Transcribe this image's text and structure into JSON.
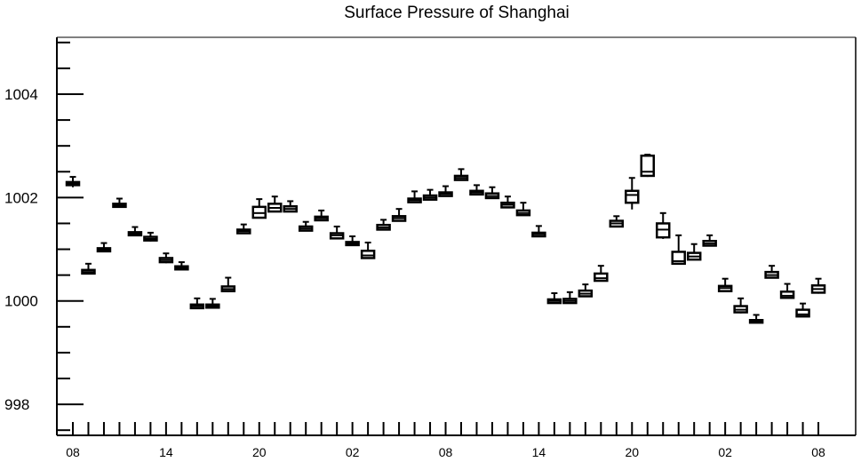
{
  "chart_data": {
    "type": "box",
    "title": "Surface Pressure of Shanghai",
    "xlabel": "",
    "ylabel": "",
    "ylim": [
      997.4,
      1005.1
    ],
    "yticks": [
      998,
      1000,
      1002,
      1004
    ],
    "ytick_labels": [
      "998",
      "1000",
      "1002",
      "1004"
    ],
    "xtick_labels": [
      "08",
      "14",
      "20",
      "02",
      "08",
      "14",
      "20",
      "02",
      "08"
    ],
    "xtick_label_at": [
      0,
      6,
      12,
      18,
      24,
      30,
      36,
      42,
      48
    ],
    "n_slots": 49,
    "grid": false,
    "boxes": [
      {
        "x": 0,
        "min": 1002.2,
        "q1": 1002.24,
        "median": 1002.27,
        "q3": 1002.3,
        "max": 1002.4
      },
      {
        "x": 1,
        "min": 1000.52,
        "q1": 1000.53,
        "median": 1000.56,
        "q3": 1000.6,
        "max": 1000.72
      },
      {
        "x": 2,
        "min": 1000.95,
        "q1": 1000.96,
        "median": 1000.99,
        "q3": 1001.02,
        "max": 1001.12
      },
      {
        "x": 3,
        "min": 1001.8,
        "q1": 1001.82,
        "median": 1001.85,
        "q3": 1001.88,
        "max": 1001.98
      },
      {
        "x": 4,
        "min": 1001.25,
        "q1": 1001.27,
        "median": 1001.3,
        "q3": 1001.33,
        "max": 1001.43
      },
      {
        "x": 5,
        "min": 1001.15,
        "q1": 1001.17,
        "median": 1001.2,
        "q3": 1001.24,
        "max": 1001.32
      },
      {
        "x": 6,
        "min": 1000.73,
        "q1": 1000.75,
        "median": 1000.79,
        "q3": 1000.83,
        "max": 1000.92
      },
      {
        "x": 7,
        "min": 1000.6,
        "q1": 1000.61,
        "median": 1000.64,
        "q3": 1000.67,
        "max": 1000.75
      },
      {
        "x": 8,
        "min": 999.85,
        "q1": 999.86,
        "median": 999.9,
        "q3": 999.93,
        "max": 1000.05
      },
      {
        "x": 9,
        "min": 999.86,
        "q1": 999.87,
        "median": 999.9,
        "q3": 999.93,
        "max": 1000.04
      },
      {
        "x": 10,
        "min": 1000.17,
        "q1": 1000.19,
        "median": 1000.23,
        "q3": 1000.28,
        "max": 1000.45
      },
      {
        "x": 11,
        "min": 1001.3,
        "q1": 1001.31,
        "median": 1001.35,
        "q3": 1001.38,
        "max": 1001.48
      },
      {
        "x": 12,
        "min": 1001.6,
        "q1": 1001.61,
        "median": 1001.7,
        "q3": 1001.82,
        "max": 1001.97
      },
      {
        "x": 13,
        "min": 1001.72,
        "q1": 1001.73,
        "median": 1001.8,
        "q3": 1001.88,
        "max": 1002.02
      },
      {
        "x": 14,
        "min": 1001.72,
        "q1": 1001.73,
        "median": 1001.78,
        "q3": 1001.83,
        "max": 1001.93
      },
      {
        "x": 15,
        "min": 1001.35,
        "q1": 1001.36,
        "median": 1001.4,
        "q3": 1001.44,
        "max": 1001.53
      },
      {
        "x": 16,
        "min": 1001.55,
        "q1": 1001.56,
        "median": 1001.6,
        "q3": 1001.63,
        "max": 1001.75
      },
      {
        "x": 17,
        "min": 1001.2,
        "q1": 1001.21,
        "median": 1001.27,
        "q3": 1001.31,
        "max": 1001.44
      },
      {
        "x": 18,
        "min": 1001.07,
        "q1": 1001.08,
        "median": 1001.11,
        "q3": 1001.14,
        "max": 1001.25
      },
      {
        "x": 19,
        "min": 1000.82,
        "q1": 1000.83,
        "median": 1000.88,
        "q3": 1000.97,
        "max": 1001.13
      },
      {
        "x": 20,
        "min": 1001.37,
        "q1": 1001.38,
        "median": 1001.42,
        "q3": 1001.47,
        "max": 1001.57
      },
      {
        "x": 21,
        "min": 1001.54,
        "q1": 1001.55,
        "median": 1001.6,
        "q3": 1001.64,
        "max": 1001.78
      },
      {
        "x": 22,
        "min": 1001.9,
        "q1": 1001.91,
        "median": 1001.95,
        "q3": 1001.98,
        "max": 1002.12
      },
      {
        "x": 23,
        "min": 1001.95,
        "q1": 1001.96,
        "median": 1002.0,
        "q3": 1002.04,
        "max": 1002.15
      },
      {
        "x": 24,
        "min": 1002.02,
        "q1": 1002.03,
        "median": 1002.07,
        "q3": 1002.1,
        "max": 1002.22
      },
      {
        "x": 25,
        "min": 1002.33,
        "q1": 1002.34,
        "median": 1002.38,
        "q3": 1002.42,
        "max": 1002.55
      },
      {
        "x": 26,
        "min": 1002.05,
        "q1": 1002.06,
        "median": 1002.1,
        "q3": 1002.13,
        "max": 1002.24
      },
      {
        "x": 27,
        "min": 1001.98,
        "q1": 1001.99,
        "median": 1002.03,
        "q3": 1002.08,
        "max": 1002.2
      },
      {
        "x": 28,
        "min": 1001.8,
        "q1": 1001.81,
        "median": 1001.86,
        "q3": 1001.9,
        "max": 1002.02
      },
      {
        "x": 29,
        "min": 1001.65,
        "q1": 1001.66,
        "median": 1001.7,
        "q3": 1001.75,
        "max": 1001.9
      },
      {
        "x": 30,
        "min": 1001.24,
        "q1": 1001.25,
        "median": 1001.29,
        "q3": 1001.32,
        "max": 1001.45
      },
      {
        "x": 31,
        "min": 999.95,
        "q1": 999.96,
        "median": 1000.0,
        "q3": 1000.03,
        "max": 1000.15
      },
      {
        "x": 32,
        "min": 999.95,
        "q1": 999.96,
        "median": 1000.0,
        "q3": 1000.04,
        "max": 1000.17
      },
      {
        "x": 33,
        "min": 1000.08,
        "q1": 1000.09,
        "median": 1000.14,
        "q3": 1000.2,
        "max": 1000.32
      },
      {
        "x": 34,
        "min": 1000.38,
        "q1": 1000.39,
        "median": 1000.44,
        "q3": 1000.53,
        "max": 1000.68
      },
      {
        "x": 35,
        "min": 1001.43,
        "q1": 1001.44,
        "median": 1001.5,
        "q3": 1001.55,
        "max": 1001.64
      },
      {
        "x": 36,
        "min": 1001.77,
        "q1": 1001.9,
        "median": 1002.05,
        "q3": 1002.13,
        "max": 1002.38
      },
      {
        "x": 37,
        "min": 1002.4,
        "q1": 1002.42,
        "median": 1002.5,
        "q3": 1002.81,
        "max": 1002.83
      },
      {
        "x": 38,
        "min": 1001.2,
        "q1": 1001.23,
        "median": 1001.38,
        "q3": 1001.5,
        "max": 1001.7
      },
      {
        "x": 39,
        "min": 1000.7,
        "q1": 1000.72,
        "median": 1000.77,
        "q3": 1000.95,
        "max": 1001.27
      },
      {
        "x": 40,
        "min": 1000.79,
        "q1": 1000.8,
        "median": 1000.86,
        "q3": 1000.93,
        "max": 1001.1
      },
      {
        "x": 41,
        "min": 1001.06,
        "q1": 1001.07,
        "median": 1001.11,
        "q3": 1001.16,
        "max": 1001.27
      },
      {
        "x": 42,
        "min": 1000.18,
        "q1": 1000.19,
        "median": 1000.25,
        "q3": 1000.29,
        "max": 1000.43
      },
      {
        "x": 43,
        "min": 999.76,
        "q1": 999.78,
        "median": 999.83,
        "q3": 999.9,
        "max": 1000.05
      },
      {
        "x": 44,
        "min": 999.57,
        "q1": 999.58,
        "median": 999.61,
        "q3": 999.63,
        "max": 999.73
      },
      {
        "x": 45,
        "min": 1000.44,
        "q1": 1000.45,
        "median": 1000.5,
        "q3": 1000.56,
        "max": 1000.68
      },
      {
        "x": 46,
        "min": 1000.05,
        "q1": 1000.06,
        "median": 1000.1,
        "q3": 1000.18,
        "max": 1000.33
      },
      {
        "x": 47,
        "min": 999.69,
        "q1": 999.7,
        "median": 999.74,
        "q3": 999.83,
        "max": 999.95
      },
      {
        "x": 48,
        "min": 1000.14,
        "q1": 1000.16,
        "median": 1000.23,
        "q3": 1000.3,
        "max": 1000.43
      }
    ]
  }
}
